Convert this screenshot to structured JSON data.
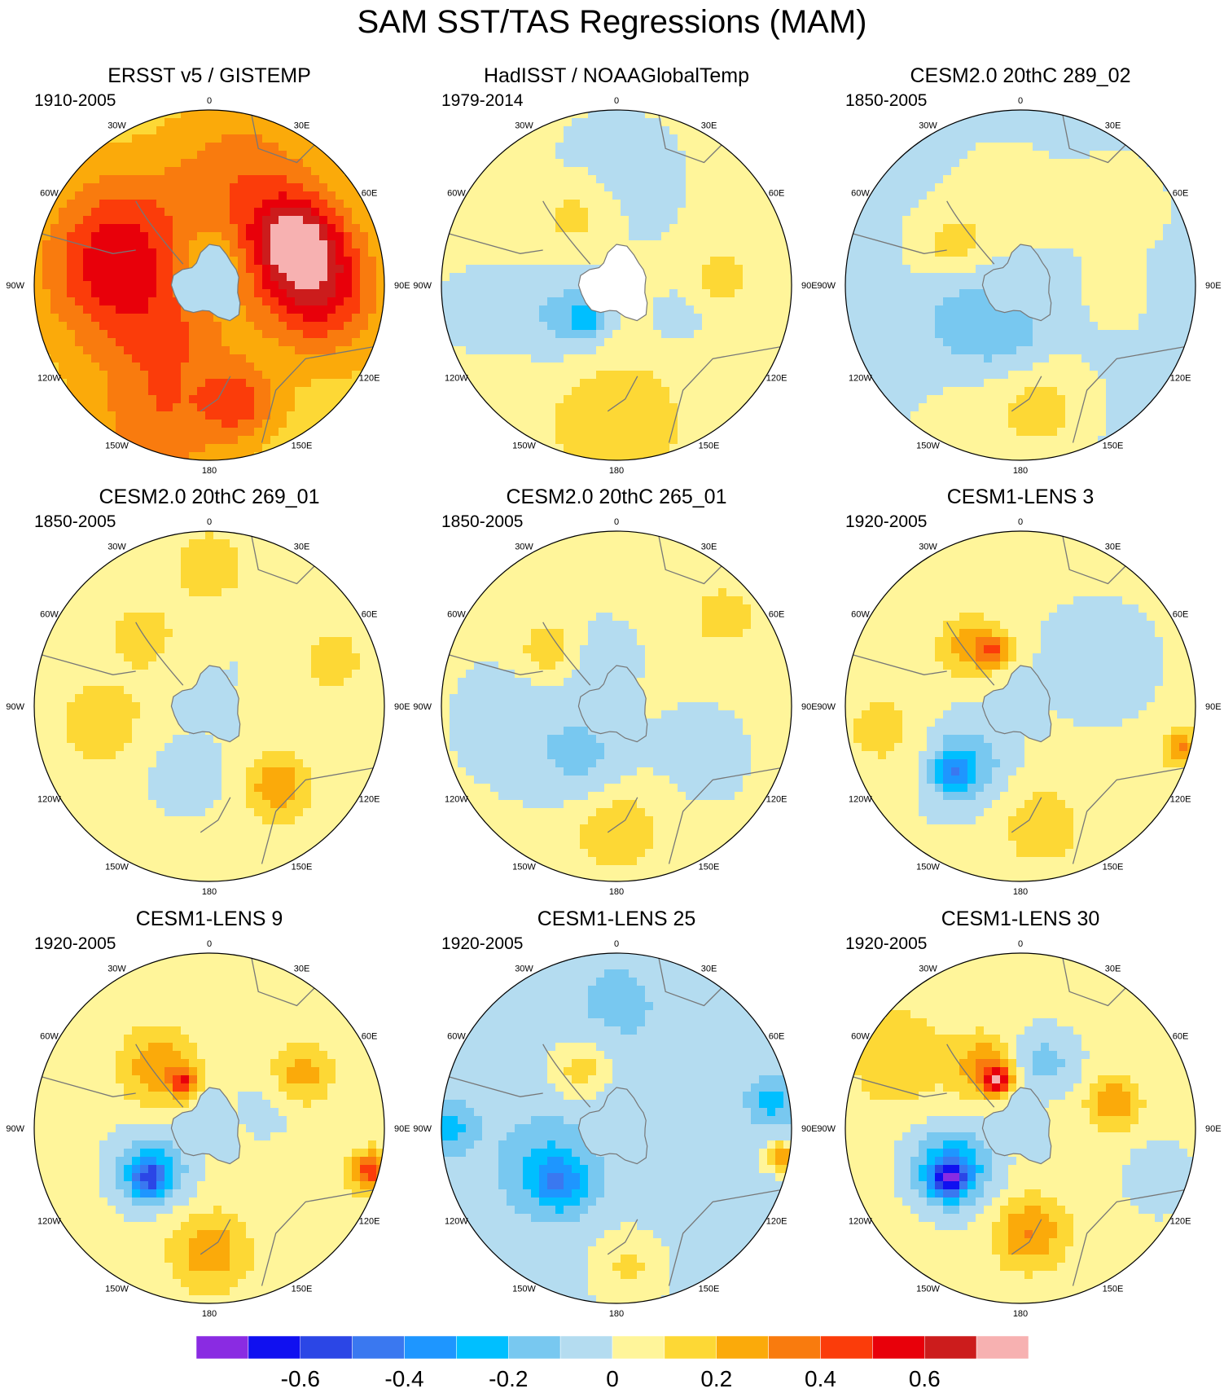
{
  "title": "SAM SST/TAS Regressions (MAM)",
  "chart_data": {
    "type": "polar-stereographic contour maps (southern hemisphere)",
    "variable": "SST/TAS regression on SAM index",
    "season": "MAM",
    "longitude_labels": [
      "0",
      "30E",
      "60E",
      "90E",
      "120E",
      "150E",
      "180",
      "150W",
      "120W",
      "90W",
      "60W",
      "30W"
    ],
    "panels": [
      {
        "title": "ERSST v5 / GISTEMP",
        "period": "1910-2005",
        "pattern": "obs1"
      },
      {
        "title": "HadISST / NOAAGlobalTemp",
        "period": "1979-2014",
        "pattern": "obs2"
      },
      {
        "title": "CESM2.0 20thC 289_02",
        "period": "1850-2005",
        "pattern": "m1"
      },
      {
        "title": "CESM2.0 20thC 269_01",
        "period": "1850-2005",
        "pattern": "m2"
      },
      {
        "title": "CESM2.0 20thC 265_01",
        "period": "1850-2005",
        "pattern": "m3"
      },
      {
        "title": "CESM1-LENS 3",
        "period": "1920-2005",
        "pattern": "m4"
      },
      {
        "title": "CESM1-LENS 9",
        "period": "1920-2005",
        "pattern": "m5"
      },
      {
        "title": "CESM1-LENS 25",
        "period": "1920-2005",
        "pattern": "m6"
      },
      {
        "title": "CESM1-LENS 30",
        "period": "1920-2005",
        "pattern": "m7"
      }
    ],
    "colorbar": {
      "colors": [
        "#8a2be2",
        "#1010f0",
        "#2b46e6",
        "#3a78f0",
        "#1e96ff",
        "#00bfff",
        "#78c8f0",
        "#b4dcf0",
        "#fff59a",
        "#fdd835",
        "#fbaa0a",
        "#f97b0e",
        "#fb3c0a",
        "#e8000a",
        "#cc1c1c",
        "#f7b1b1"
      ],
      "tick_values": [
        -0.6,
        -0.4,
        -0.2,
        0,
        0.2,
        0.4,
        0.6
      ],
      "tick_labels": [
        "-0.6",
        "-0.4",
        "-0.2",
        "0",
        "0.2",
        "0.4",
        "0.6"
      ],
      "min": -0.8,
      "max": 0.8,
      "step": 0.1
    }
  }
}
